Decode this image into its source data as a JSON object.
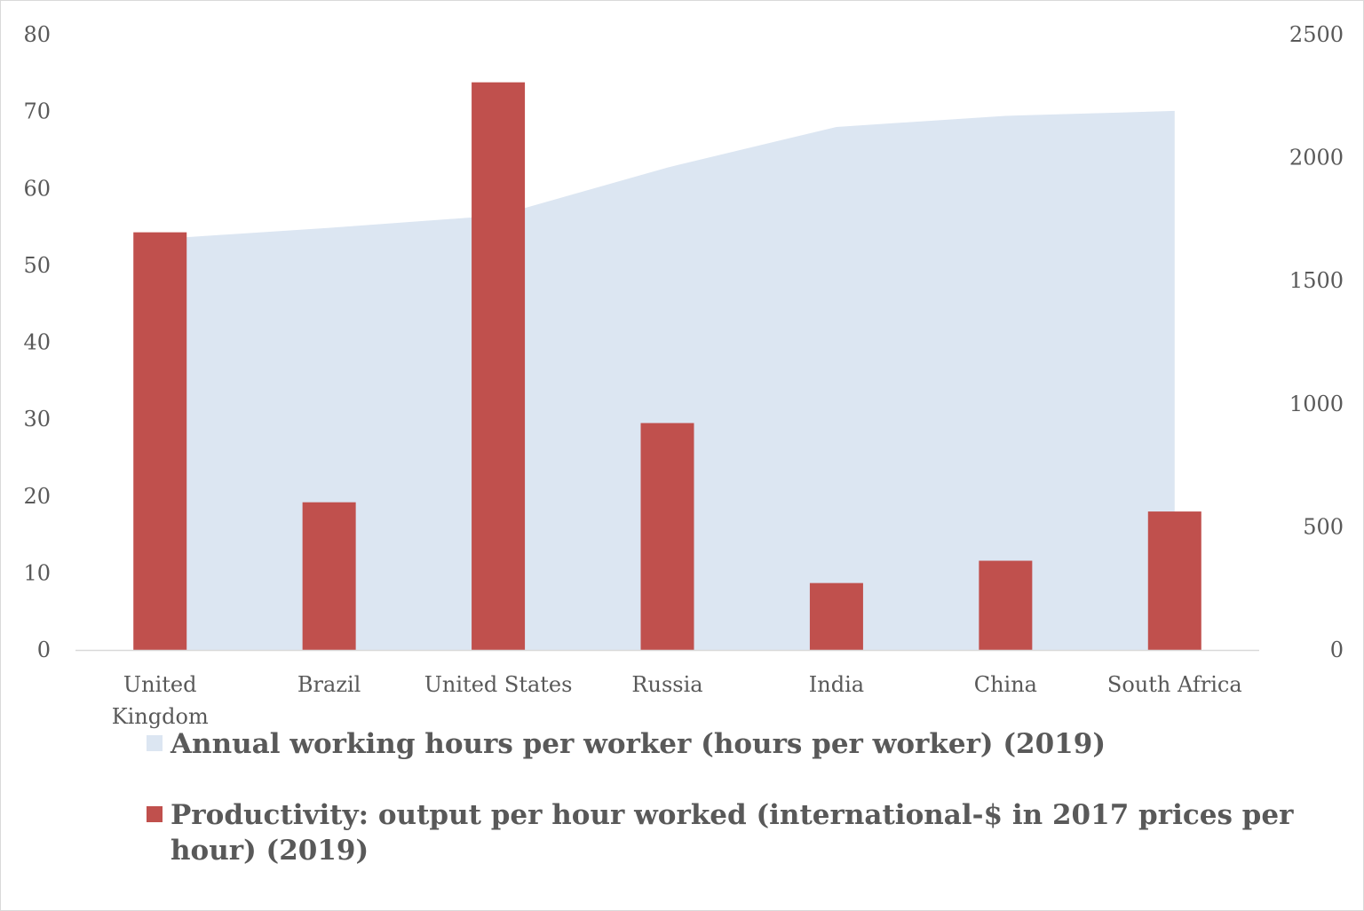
{
  "chart_data": {
    "type": "bar",
    "categories": [
      [
        "United",
        "Kingdom"
      ],
      [
        "Brazil"
      ],
      [
        "United States"
      ],
      [
        "Russia"
      ],
      [
        "India"
      ],
      [
        "China"
      ],
      [
        "South Africa"
      ]
    ],
    "y_left": {
      "min": 0,
      "max": 80,
      "step": 10,
      "ticks": [
        "0",
        "10",
        "20",
        "30",
        "40",
        "50",
        "60",
        "70",
        "80"
      ]
    },
    "y_right": {
      "min": 0,
      "max": 2500,
      "step": 500,
      "ticks": [
        "0",
        "500",
        "1000",
        "1500",
        "2000",
        "2500"
      ]
    },
    "series": [
      {
        "name": "Annual working hours per worker (hours per worker) (2019)",
        "type": "area",
        "axis": "right",
        "color": "#dce6f2",
        "values": [
          1670,
          1715,
          1765,
          1960,
          2125,
          2170,
          2190
        ]
      },
      {
        "name": "Productivity: output per hour worked  (international-$ in 2017 prices per hour) (2019)",
        "legend_lines": [
          "Productivity: output per hour worked  (international-$ in 2017 prices per",
          "hour) (2019)"
        ],
        "type": "bar",
        "axis": "left",
        "color": "#c0504d",
        "values": [
          54.3,
          19.2,
          73.8,
          29.5,
          8.7,
          11.6,
          18.0
        ]
      }
    ],
    "grid": false,
    "legend_position": "bottom"
  }
}
